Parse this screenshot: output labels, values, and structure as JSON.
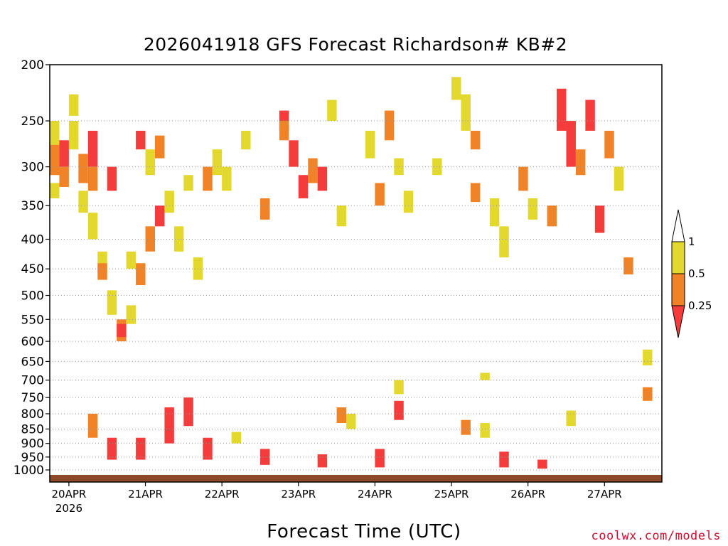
{
  "title": "2026041918 GFS Forecast Richardson# KB#2",
  "footer": "coolwx.com/models",
  "colors": {
    "yellow": "#e3d92e",
    "orange": "#f08228",
    "red": "#f53c3c",
    "ground": "#8c4a28",
    "white": "#ffffff"
  },
  "chart_data": {
    "type": "heatmap",
    "title": "2026041918 GFS Forecast Richardson# KB#2",
    "xlabel": "Forecast Time (UTC)",
    "ylabel": "",
    "y_scale": "log-pressure",
    "y_unit": "hPa",
    "y_range": [
      1000,
      200
    ],
    "y_ticks": [
      200,
      250,
      300,
      350,
      400,
      450,
      500,
      550,
      600,
      650,
      700,
      750,
      800,
      850,
      900,
      950,
      1000
    ],
    "x_unit": "hours",
    "x_range": [
      0,
      192
    ],
    "x_ticks": [
      {
        "hour": 6,
        "label": "20APR",
        "sub": "2026"
      },
      {
        "hour": 30,
        "label": "21APR",
        "sub": ""
      },
      {
        "hour": 54,
        "label": "22APR",
        "sub": ""
      },
      {
        "hour": 78,
        "label": "23APR",
        "sub": ""
      },
      {
        "hour": 102,
        "label": "24APR",
        "sub": ""
      },
      {
        "hour": 126,
        "label": "25APR",
        "sub": ""
      },
      {
        "hour": 150,
        "label": "26APR",
        "sub": ""
      },
      {
        "hour": 174,
        "label": "27APR",
        "sub": ""
      }
    ],
    "grid": true,
    "legend": "right",
    "colorbar": {
      "levels": [
        "1",
        "0.5",
        "0.25"
      ],
      "bins": [
        {
          "range": "> 1",
          "color": "white"
        },
        {
          "range": "0.5 - 1",
          "color": "yellow"
        },
        {
          "range": "0.25 - 0.5",
          "color": "orange"
        },
        {
          "range": "< 0.25",
          "color": "red"
        }
      ]
    },
    "cells": [
      {
        "t": 0,
        "p": [
          260,
          310
        ],
        "c": "orange"
      },
      {
        "t": 0,
        "p": [
          320,
          340
        ],
        "c": "yellow"
      },
      {
        "t": 0,
        "p": [
          250,
          275
        ],
        "c": "yellow"
      },
      {
        "t": 3,
        "p": [
          270,
          300
        ],
        "c": "red"
      },
      {
        "t": 3,
        "p": [
          300,
          325
        ],
        "c": "orange"
      },
      {
        "t": 6,
        "p": [
          225,
          245
        ],
        "c": "yellow"
      },
      {
        "t": 6,
        "p": [
          250,
          280
        ],
        "c": "yellow"
      },
      {
        "t": 9,
        "p": [
          285,
          320
        ],
        "c": "orange"
      },
      {
        "t": 9,
        "p": [
          330,
          360
        ],
        "c": "yellow"
      },
      {
        "t": 12,
        "p": [
          260,
          300
        ],
        "c": "red"
      },
      {
        "t": 12,
        "p": [
          300,
          330
        ],
        "c": "orange"
      },
      {
        "t": 12,
        "p": [
          360,
          400
        ],
        "c": "yellow"
      },
      {
        "t": 15,
        "p": [
          420,
          460
        ],
        "c": "yellow"
      },
      {
        "t": 15,
        "p": [
          440,
          470
        ],
        "c": "orange"
      },
      {
        "t": 18,
        "p": [
          490,
          540
        ],
        "c": "yellow"
      },
      {
        "t": 18,
        "p": [
          300,
          330
        ],
        "c": "red"
      },
      {
        "t": 21,
        "p": [
          550,
          600
        ],
        "c": "orange"
      },
      {
        "t": 21,
        "p": [
          560,
          590
        ],
        "c": "red"
      },
      {
        "t": 24,
        "p": [
          520,
          560
        ],
        "c": "yellow"
      },
      {
        "t": 24,
        "p": [
          420,
          450
        ],
        "c": "yellow"
      },
      {
        "t": 27,
        "p": [
          440,
          480
        ],
        "c": "orange"
      },
      {
        "t": 27,
        "p": [
          260,
          280
        ],
        "c": "red"
      },
      {
        "t": 30,
        "p": [
          280,
          310
        ],
        "c": "yellow"
      },
      {
        "t": 30,
        "p": [
          380,
          420
        ],
        "c": "orange"
      },
      {
        "t": 33,
        "p": [
          265,
          290
        ],
        "c": "orange"
      },
      {
        "t": 33,
        "p": [
          350,
          380
        ],
        "c": "red"
      },
      {
        "t": 36,
        "p": [
          330,
          360
        ],
        "c": "yellow"
      },
      {
        "t": 39,
        "p": [
          380,
          420
        ],
        "c": "yellow"
      },
      {
        "t": 42,
        "p": [
          310,
          330
        ],
        "c": "yellow"
      },
      {
        "t": 45,
        "p": [
          430,
          470
        ],
        "c": "yellow"
      },
      {
        "t": 48,
        "p": [
          300,
          330
        ],
        "c": "orange"
      },
      {
        "t": 51,
        "p": [
          280,
          310
        ],
        "c": "yellow"
      },
      {
        "t": 54,
        "p": [
          300,
          330
        ],
        "c": "yellow"
      },
      {
        "t": 60,
        "p": [
          260,
          280
        ],
        "c": "yellow"
      },
      {
        "t": 66,
        "p": [
          340,
          370
        ],
        "c": "orange"
      },
      {
        "t": 72,
        "p": [
          240,
          260
        ],
        "c": "red"
      },
      {
        "t": 72,
        "p": [
          250,
          270
        ],
        "c": "orange"
      },
      {
        "t": 75,
        "p": [
          270,
          300
        ],
        "c": "red"
      },
      {
        "t": 78,
        "p": [
          310,
          340
        ],
        "c": "red"
      },
      {
        "t": 81,
        "p": [
          290,
          320
        ],
        "c": "orange"
      },
      {
        "t": 84,
        "p": [
          300,
          330
        ],
        "c": "red"
      },
      {
        "t": 87,
        "p": [
          230,
          250
        ],
        "c": "yellow"
      },
      {
        "t": 90,
        "p": [
          350,
          380
        ],
        "c": "yellow"
      },
      {
        "t": 99,
        "p": [
          260,
          290
        ],
        "c": "yellow"
      },
      {
        "t": 102,
        "p": [
          320,
          350
        ],
        "c": "orange"
      },
      {
        "t": 105,
        "p": [
          240,
          270
        ],
        "c": "orange"
      },
      {
        "t": 108,
        "p": [
          290,
          310
        ],
        "c": "yellow"
      },
      {
        "t": 111,
        "p": [
          330,
          360
        ],
        "c": "yellow"
      },
      {
        "t": 120,
        "p": [
          290,
          310
        ],
        "c": "yellow"
      },
      {
        "t": 126,
        "p": [
          210,
          230
        ],
        "c": "yellow"
      },
      {
        "t": 129,
        "p": [
          225,
          260
        ],
        "c": "yellow"
      },
      {
        "t": 132,
        "p": [
          260,
          280
        ],
        "c": "orange"
      },
      {
        "t": 132,
        "p": [
          320,
          345
        ],
        "c": "orange"
      },
      {
        "t": 138,
        "p": [
          340,
          380
        ],
        "c": "yellow"
      },
      {
        "t": 141,
        "p": [
          380,
          430
        ],
        "c": "yellow"
      },
      {
        "t": 147,
        "p": [
          300,
          330
        ],
        "c": "orange"
      },
      {
        "t": 150,
        "p": [
          340,
          370
        ],
        "c": "yellow"
      },
      {
        "t": 156,
        "p": [
          350,
          380
        ],
        "c": "orange"
      },
      {
        "t": 159,
        "p": [
          220,
          260
        ],
        "c": "red"
      },
      {
        "t": 162,
        "p": [
          250,
          300
        ],
        "c": "red"
      },
      {
        "t": 165,
        "p": [
          280,
          310
        ],
        "c": "orange"
      },
      {
        "t": 168,
        "p": [
          230,
          260
        ],
        "c": "red"
      },
      {
        "t": 171,
        "p": [
          350,
          390
        ],
        "c": "red"
      },
      {
        "t": 174,
        "p": [
          260,
          290
        ],
        "c": "orange"
      },
      {
        "t": 177,
        "p": [
          300,
          330
        ],
        "c": "yellow"
      },
      {
        "t": 180,
        "p": [
          430,
          460
        ],
        "c": "orange"
      },
      {
        "t": 186,
        "p": [
          620,
          660
        ],
        "c": "yellow"
      },
      {
        "t": 186,
        "p": [
          720,
          760
        ],
        "c": "orange"
      },
      {
        "t": 12,
        "p": [
          800,
          880
        ],
        "c": "orange"
      },
      {
        "t": 18,
        "p": [
          880,
          960
        ],
        "c": "red"
      },
      {
        "t": 27,
        "p": [
          880,
          960
        ],
        "c": "red"
      },
      {
        "t": 36,
        "p": [
          780,
          900
        ],
        "c": "red"
      },
      {
        "t": 42,
        "p": [
          750,
          840
        ],
        "c": "red"
      },
      {
        "t": 48,
        "p": [
          880,
          960
        ],
        "c": "red"
      },
      {
        "t": 57,
        "p": [
          860,
          900
        ],
        "c": "yellow"
      },
      {
        "t": 66,
        "p": [
          920,
          980
        ],
        "c": "red"
      },
      {
        "t": 84,
        "p": [
          940,
          990
        ],
        "c": "red"
      },
      {
        "t": 90,
        "p": [
          780,
          830
        ],
        "c": "orange"
      },
      {
        "t": 93,
        "p": [
          800,
          850
        ],
        "c": "yellow"
      },
      {
        "t": 102,
        "p": [
          920,
          990
        ],
        "c": "red"
      },
      {
        "t": 108,
        "p": [
          760,
          820
        ],
        "c": "red"
      },
      {
        "t": 108,
        "p": [
          700,
          740
        ],
        "c": "yellow"
      },
      {
        "t": 129,
        "p": [
          820,
          870
        ],
        "c": "orange"
      },
      {
        "t": 135,
        "p": [
          830,
          880
        ],
        "c": "yellow"
      },
      {
        "t": 141,
        "p": [
          930,
          990
        ],
        "c": "red"
      },
      {
        "t": 153,
        "p": [
          960,
          995
        ],
        "c": "red"
      },
      {
        "t": 162,
        "p": [
          790,
          840
        ],
        "c": "yellow"
      },
      {
        "t": 135,
        "p": [
          680,
          700
        ],
        "c": "yellow"
      }
    ]
  }
}
